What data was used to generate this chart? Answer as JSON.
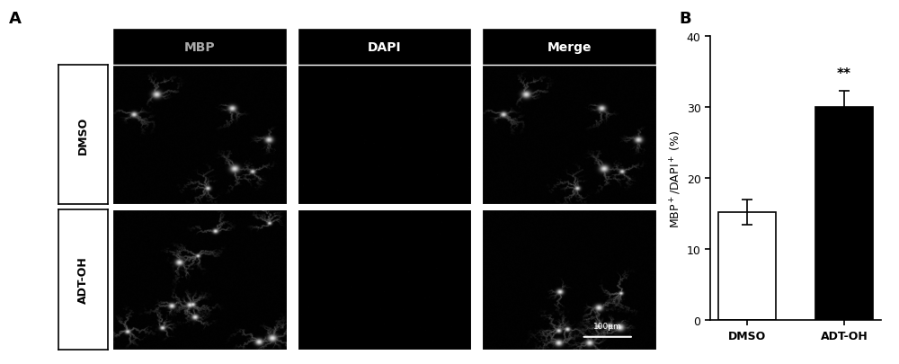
{
  "panel_A_label": "A",
  "panel_B_label": "B",
  "col_labels": [
    "MBP",
    "DAPI",
    "Merge"
  ],
  "row_labels": [
    "DMSO",
    "ADT-OH"
  ],
  "bar_categories": [
    "DMSO",
    "ADT-OH"
  ],
  "bar_values": [
    15.2,
    30.0
  ],
  "bar_errors": [
    1.8,
    2.2
  ],
  "bar_colors": [
    "#ffffff",
    "#000000"
  ],
  "bar_edge_colors": [
    "#000000",
    "#000000"
  ],
  "ylabel": "MBP$^+$/DAPI$^+$ (%)",
  "ylim": [
    0,
    40
  ],
  "yticks": [
    0,
    10,
    20,
    30,
    40
  ],
  "significance": "**",
  "scale_bar_text": "100μm",
  "mbp_color": "#aaaaaa",
  "label_fontsize": 10,
  "tick_fontsize": 9,
  "panel_label_fontsize": 13,
  "img_size": 300
}
